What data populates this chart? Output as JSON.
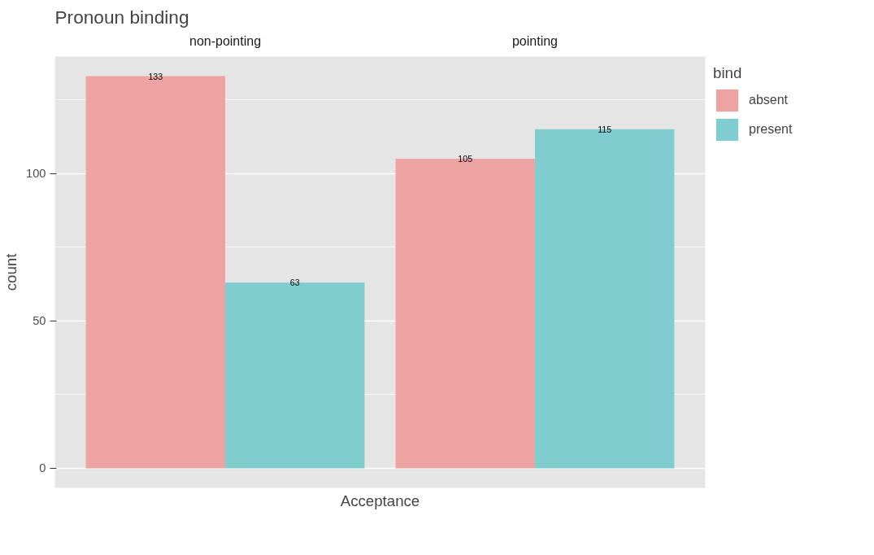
{
  "chart_data": {
    "type": "bar",
    "title": "Pronoun binding",
    "ylabel": "count",
    "xlabel": "Acceptance",
    "categories": [
      "non-pointing",
      "pointing"
    ],
    "series": [
      {
        "name": "absent",
        "color": "#eda3a2",
        "values": [
          133,
          105
        ]
      },
      {
        "name": "present",
        "color": "#7fcdcf",
        "values": [
          63,
          115
        ]
      }
    ],
    "ylim": [
      -6.65,
      139.65
    ],
    "yticks": [
      0,
      50,
      100
    ],
    "grid": "y",
    "data_labels": true,
    "legend": "right",
    "legend_title": "bind"
  }
}
